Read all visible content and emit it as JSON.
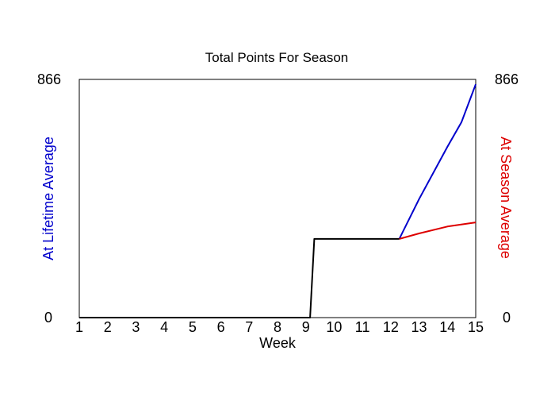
{
  "chart_data": {
    "type": "line",
    "title": "Total Points For Season",
    "xlabel": "Week",
    "ylabel_left": "At Lifetime Average",
    "ylabel_right": "At Season Average",
    "ylim": [
      0,
      866
    ],
    "xlim": [
      1,
      15
    ],
    "y_ticks": [
      "0",
      "866"
    ],
    "x_ticks": [
      1,
      2,
      3,
      4,
      5,
      6,
      7,
      8,
      9,
      10,
      11,
      12,
      13,
      14,
      15
    ],
    "grid": false,
    "colors": {
      "lifetime": "#0000cc",
      "season": "#dd0000",
      "actual": "#000000"
    },
    "series": [
      {
        "name": "At Lifetime Average",
        "color": "#0000cc",
        "x": [
          12.3,
          13,
          14,
          14.5,
          15
        ],
        "y": [
          286,
          431,
          621,
          711,
          848
        ]
      },
      {
        "name": "At Season Average",
        "color": "#dd0000",
        "x": [
          12.3,
          13,
          14,
          15
        ],
        "y": [
          286,
          306,
          331,
          346
        ]
      },
      {
        "name": "",
        "color": "#000000",
        "x": [
          1,
          9.15,
          9.3,
          12.3
        ],
        "y": [
          0,
          0,
          286,
          286
        ]
      }
    ]
  }
}
